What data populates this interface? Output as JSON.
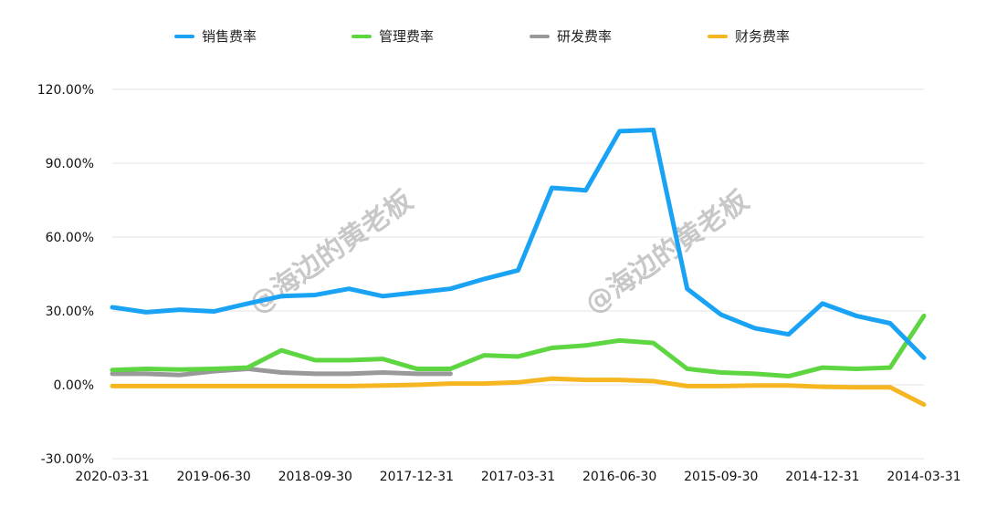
{
  "chart_data": {
    "type": "line",
    "title": "",
    "xlabel": "",
    "ylabel": "",
    "ylim": [
      -30,
      120
    ],
    "yticks": [
      "-30.00%",
      "0.00%",
      "30.00%",
      "60.00%",
      "90.00%",
      "120.00%"
    ],
    "ytick_values": [
      -30,
      0,
      30,
      60,
      90,
      120
    ],
    "grid": true,
    "legend_position": "top",
    "x": [
      "2020-03-31",
      "2019-12-31",
      "2019-09-30",
      "2019-06-30",
      "2019-03-31",
      "2018-12-31",
      "2018-09-30",
      "2018-06-30",
      "2018-03-31",
      "2017-12-31",
      "2017-09-30",
      "2017-06-30",
      "2017-03-31",
      "2016-12-31",
      "2016-09-30",
      "2016-06-30",
      "2016-03-31",
      "2015-12-31",
      "2015-09-30",
      "2015-06-30",
      "2015-03-31",
      "2014-12-31",
      "2014-09-30",
      "2014-06-30",
      "2014-03-31"
    ],
    "xtick_labels": [
      "2020-03-31",
      "2019-06-30",
      "2018-09-30",
      "2017-12-31",
      "2017-03-31",
      "2016-06-30",
      "2015-09-30",
      "2014-12-31",
      "2014-03-31"
    ],
    "series": [
      {
        "name": "销售费率",
        "color": "#1aa3f5",
        "values": [
          31.5,
          29.5,
          30.5,
          29.8,
          33,
          36,
          36.5,
          39,
          36,
          37.5,
          39,
          43,
          46.5,
          80,
          79,
          103,
          103.5,
          39,
          28.5,
          23,
          20.5,
          33,
          28,
          25,
          11
        ]
      },
      {
        "name": "管理费率",
        "color": "#5ed642",
        "values": [
          6,
          6.5,
          6.2,
          6.5,
          7,
          14,
          10,
          10,
          10.5,
          6.5,
          6.5,
          12,
          11.5,
          15,
          16,
          18,
          17,
          6.5,
          5,
          4.5,
          3.5,
          7,
          6.5,
          7,
          28
        ]
      },
      {
        "name": "研发费率",
        "color": "#999999",
        "values": [
          4.5,
          4.5,
          4,
          5.5,
          6.5,
          5,
          4.5,
          4.5,
          5,
          4.5,
          4.5,
          null,
          null,
          null,
          null,
          null,
          null,
          null,
          null,
          null,
          null,
          null,
          null,
          null,
          null
        ]
      },
      {
        "name": "财务费率",
        "color": "#f5b622",
        "values": [
          -0.5,
          -0.5,
          -0.5,
          -0.5,
          -0.5,
          -0.5,
          -0.5,
          -0.5,
          -0.3,
          0,
          0.5,
          0.5,
          1,
          2.5,
          2,
          2,
          1.5,
          -0.5,
          -0.5,
          -0.3,
          -0.3,
          -0.8,
          -1,
          -1,
          -8
        ]
      }
    ]
  },
  "watermark": {
    "text": "@海边的黄老板"
  }
}
